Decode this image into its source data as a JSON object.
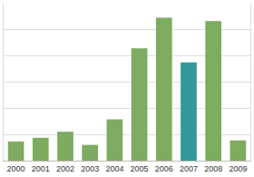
{
  "chart_data": {
    "type": "bar",
    "categories": [
      "2000",
      "2001",
      "2002",
      "2003",
      "2004",
      "2005",
      "2006",
      "2007",
      "2008",
      "2009"
    ],
    "values": [
      0.73,
      0.87,
      1.1,
      0.6,
      1.57,
      4.27,
      5.43,
      3.73,
      5.3,
      0.77
    ],
    "colors": [
      "#7dab5f",
      "#7dab5f",
      "#7dab5f",
      "#7dab5f",
      "#7dab5f",
      "#7dab5f",
      "#7dab5f",
      "#339999",
      "#7dab5f",
      "#7dab5f"
    ],
    "ylim": [
      0,
      6
    ],
    "yticks": [
      0,
      1,
      2,
      3,
      4,
      5,
      6
    ],
    "grid": true,
    "tick_labels": "x"
  }
}
